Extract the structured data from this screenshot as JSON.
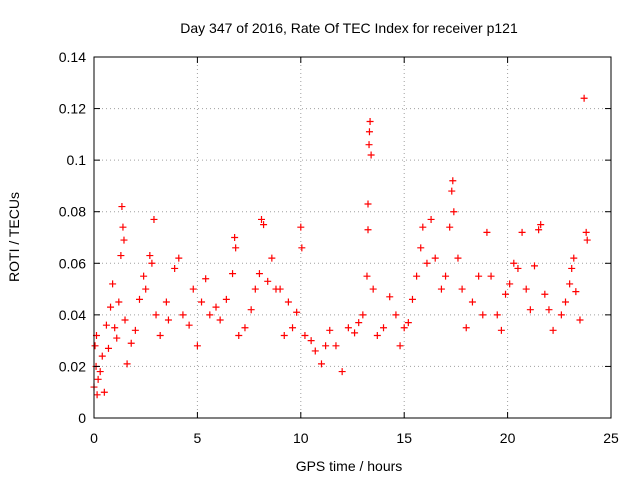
{
  "chart_data": {
    "type": "scatter",
    "title": "Day 347 of 2016, Rate Of TEC Index for receiver p121",
    "xlabel": "GPS time / hours",
    "ylabel": "ROTI / TECUs",
    "xlim": [
      0,
      25
    ],
    "ylim": [
      0,
      0.14
    ],
    "xticks": [
      "0",
      "5",
      "10",
      "15",
      "20",
      "25"
    ],
    "yticks": [
      "0",
      "0.02",
      "0.04",
      "0.06",
      "0.08",
      "0.1",
      "0.12",
      "0.14"
    ],
    "grid": true,
    "marker": "+",
    "color": "#ff0000",
    "series": [
      {
        "points": [
          [
            0.0,
            0.012
          ],
          [
            0.05,
            0.028
          ],
          [
            0.1,
            0.02
          ],
          [
            0.12,
            0.032
          ],
          [
            0.15,
            0.009
          ],
          [
            0.2,
            0.015
          ],
          [
            0.3,
            0.018
          ],
          [
            0.4,
            0.024
          ],
          [
            0.5,
            0.01
          ],
          [
            0.6,
            0.036
          ],
          [
            0.7,
            0.027
          ],
          [
            0.8,
            0.043
          ],
          [
            0.9,
            0.052
          ],
          [
            1.0,
            0.035
          ],
          [
            1.1,
            0.031
          ],
          [
            1.2,
            0.045
          ],
          [
            1.3,
            0.063
          ],
          [
            1.35,
            0.082
          ],
          [
            1.4,
            0.074
          ],
          [
            1.45,
            0.069
          ],
          [
            1.5,
            0.038
          ],
          [
            1.6,
            0.021
          ],
          [
            1.8,
            0.029
          ],
          [
            2.0,
            0.034
          ],
          [
            2.2,
            0.046
          ],
          [
            2.4,
            0.055
          ],
          [
            2.5,
            0.05
          ],
          [
            2.7,
            0.063
          ],
          [
            2.8,
            0.06
          ],
          [
            2.9,
            0.077
          ],
          [
            3.0,
            0.04
          ],
          [
            3.2,
            0.032
          ],
          [
            3.5,
            0.045
          ],
          [
            3.6,
            0.038
          ],
          [
            3.9,
            0.058
          ],
          [
            4.1,
            0.062
          ],
          [
            4.3,
            0.04
          ],
          [
            4.6,
            0.036
          ],
          [
            4.8,
            0.05
          ],
          [
            5.0,
            0.028
          ],
          [
            5.2,
            0.045
          ],
          [
            5.4,
            0.054
          ],
          [
            5.6,
            0.04
          ],
          [
            5.9,
            0.043
          ],
          [
            6.1,
            0.038
          ],
          [
            6.4,
            0.046
          ],
          [
            6.7,
            0.056
          ],
          [
            6.8,
            0.07
          ],
          [
            6.85,
            0.066
          ],
          [
            7.0,
            0.032
          ],
          [
            7.3,
            0.035
          ],
          [
            7.6,
            0.042
          ],
          [
            7.8,
            0.05
          ],
          [
            8.0,
            0.056
          ],
          [
            8.1,
            0.077
          ],
          [
            8.2,
            0.075
          ],
          [
            8.4,
            0.053
          ],
          [
            8.6,
            0.062
          ],
          [
            8.8,
            0.05
          ],
          [
            9.0,
            0.05
          ],
          [
            9.2,
            0.032
          ],
          [
            9.4,
            0.045
          ],
          [
            9.6,
            0.035
          ],
          [
            9.8,
            0.041
          ],
          [
            10.0,
            0.074
          ],
          [
            10.05,
            0.066
          ],
          [
            10.2,
            0.032
          ],
          [
            10.5,
            0.03
          ],
          [
            10.7,
            0.026
          ],
          [
            11.0,
            0.021
          ],
          [
            11.2,
            0.028
          ],
          [
            11.4,
            0.034
          ],
          [
            11.7,
            0.028
          ],
          [
            12.0,
            0.018
          ],
          [
            12.3,
            0.035
          ],
          [
            12.6,
            0.033
          ],
          [
            12.8,
            0.037
          ],
          [
            13.0,
            0.04
          ],
          [
            13.2,
            0.055
          ],
          [
            13.25,
            0.083
          ],
          [
            13.3,
            0.106
          ],
          [
            13.32,
            0.111
          ],
          [
            13.35,
            0.115
          ],
          [
            13.4,
            0.102
          ],
          [
            13.25,
            0.073
          ],
          [
            13.5,
            0.05
          ],
          [
            13.7,
            0.032
          ],
          [
            14.0,
            0.035
          ],
          [
            14.3,
            0.047
          ],
          [
            14.6,
            0.04
          ],
          [
            14.8,
            0.028
          ],
          [
            15.0,
            0.035
          ],
          [
            15.2,
            0.037
          ],
          [
            15.4,
            0.046
          ],
          [
            15.6,
            0.055
          ],
          [
            15.8,
            0.066
          ],
          [
            15.9,
            0.074
          ],
          [
            16.1,
            0.06
          ],
          [
            16.3,
            0.077
          ],
          [
            16.5,
            0.062
          ],
          [
            16.8,
            0.05
          ],
          [
            17.0,
            0.055
          ],
          [
            17.2,
            0.074
          ],
          [
            17.3,
            0.088
          ],
          [
            17.35,
            0.092
          ],
          [
            17.4,
            0.08
          ],
          [
            17.6,
            0.062
          ],
          [
            17.8,
            0.05
          ],
          [
            18.0,
            0.035
          ],
          [
            18.3,
            0.045
          ],
          [
            18.6,
            0.055
          ],
          [
            18.8,
            0.04
          ],
          [
            19.0,
            0.072
          ],
          [
            19.2,
            0.055
          ],
          [
            19.5,
            0.04
          ],
          [
            19.7,
            0.034
          ],
          [
            19.9,
            0.048
          ],
          [
            20.1,
            0.052
          ],
          [
            20.3,
            0.06
          ],
          [
            20.5,
            0.058
          ],
          [
            20.7,
            0.072
          ],
          [
            20.9,
            0.05
          ],
          [
            21.1,
            0.042
          ],
          [
            21.3,
            0.059
          ],
          [
            21.5,
            0.073
          ],
          [
            21.6,
            0.075
          ],
          [
            21.8,
            0.048
          ],
          [
            22.0,
            0.042
          ],
          [
            22.2,
            0.034
          ],
          [
            22.6,
            0.04
          ],
          [
            22.8,
            0.045
          ],
          [
            23.0,
            0.052
          ],
          [
            23.1,
            0.058
          ],
          [
            23.2,
            0.062
          ],
          [
            23.3,
            0.049
          ],
          [
            23.5,
            0.038
          ],
          [
            23.7,
            0.124
          ],
          [
            23.8,
            0.072
          ],
          [
            23.85,
            0.069
          ]
        ]
      }
    ]
  }
}
